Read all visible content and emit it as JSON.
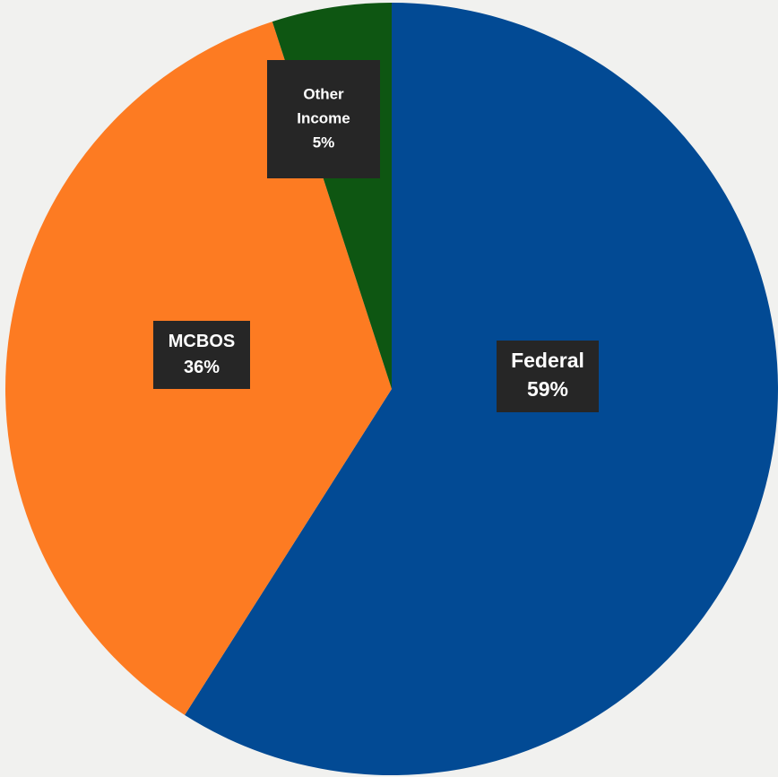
{
  "chart_data": {
    "type": "pie",
    "title": "",
    "slices": [
      {
        "label_lines": [
          "Federal",
          "59%"
        ],
        "value": 59,
        "color": "#024a94"
      },
      {
        "label_lines": [
          "MCBOS",
          "36%"
        ],
        "value": 36,
        "color": "#fd7b22"
      },
      {
        "label_lines": [
          "Other",
          "Income",
          "5%"
        ],
        "value": 5,
        "color": "#0e5612"
      }
    ],
    "legend": "none"
  }
}
